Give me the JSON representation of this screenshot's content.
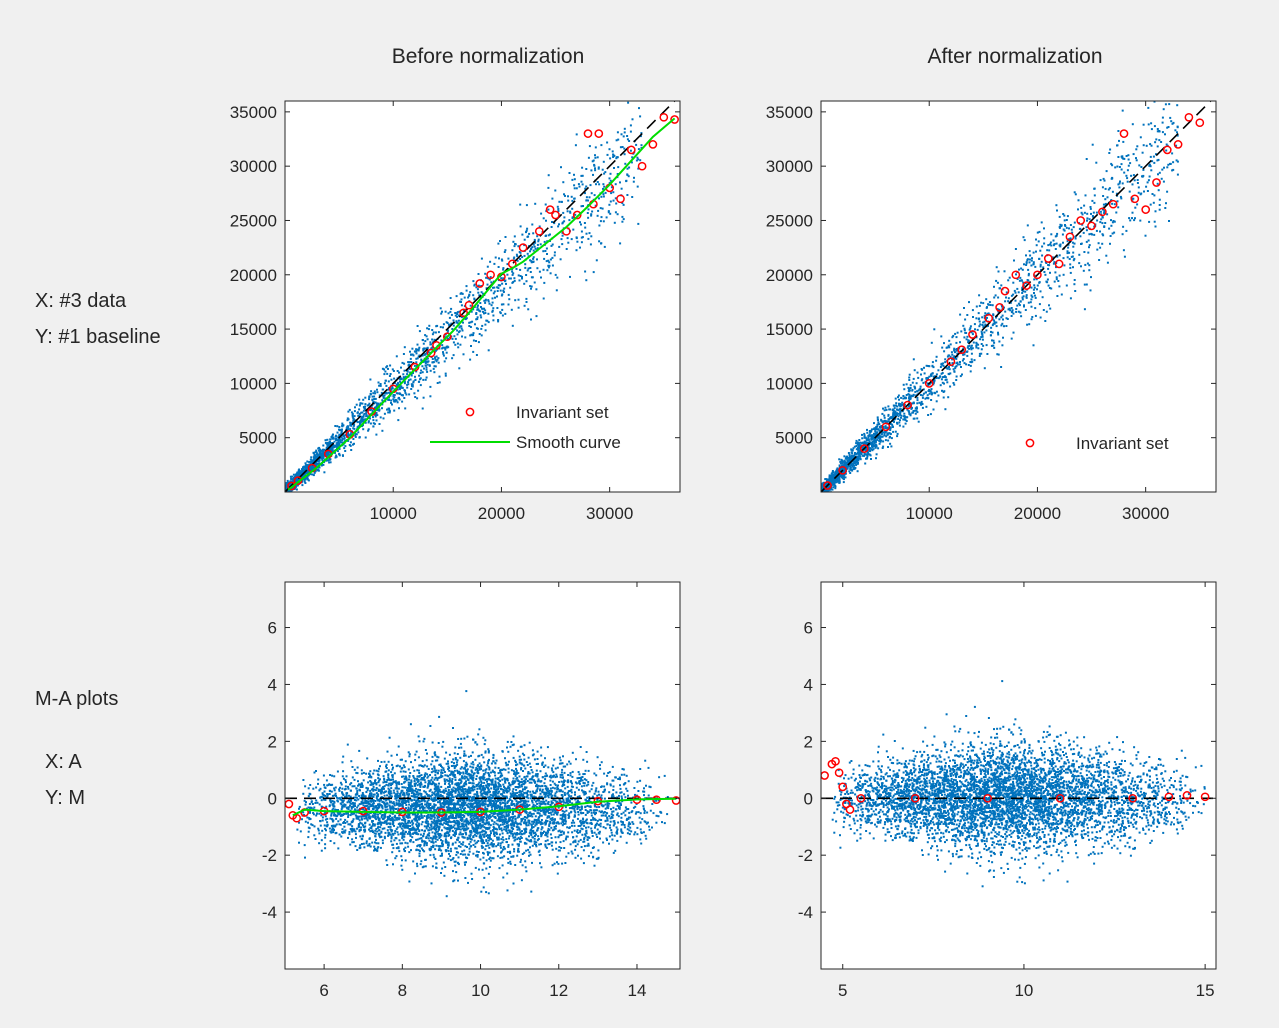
{
  "figure": {
    "side_labels": {
      "scatter_x": "X: #3 data",
      "scatter_y": "Y: #1 baseline",
      "ma_title": "M-A plots",
      "ma_x": "X: A",
      "ma_y": "Y: M"
    },
    "colors": {
      "background": "#f0f0f0",
      "axes_background": "#ffffff",
      "points": "#0072bd",
      "invariant": "#ff0000",
      "smooth": "#00dd00",
      "reference": "#000000"
    }
  },
  "chart_data": [
    {
      "id": "before-scatter",
      "type": "scatter",
      "title": "Before normalization",
      "xlabel": "",
      "ylabel": "",
      "xlim": [
        0,
        36500
      ],
      "ylim": [
        0,
        36000
      ],
      "xticks": [
        10000,
        20000,
        30000
      ],
      "yticks": [
        5000,
        10000,
        15000,
        20000,
        25000,
        30000,
        35000
      ],
      "grid": false,
      "legend": {
        "placement": "bottom-right",
        "entries": [
          "Invariant set",
          "Smooth curve"
        ]
      },
      "reference_line": {
        "style": "dashed",
        "points": [
          [
            0,
            0
          ],
          [
            36500,
            36500
          ]
        ]
      },
      "series": [
        {
          "name": "Invariant set",
          "marker": "open-circle",
          "values": [
            [
              600,
              550
            ],
            [
              1200,
              1050
            ],
            [
              2500,
              2200
            ],
            [
              4000,
              3500
            ],
            [
              6000,
              5300
            ],
            [
              8000,
              7400
            ],
            [
              10000,
              9500
            ],
            [
              12000,
              11500
            ],
            [
              13500,
              12800
            ],
            [
              14000,
              13500
            ],
            [
              15000,
              14300
            ],
            [
              16500,
              16500
            ],
            [
              17000,
              17200
            ],
            [
              18000,
              19200
            ],
            [
              19000,
              20000
            ],
            [
              20000,
              19800
            ],
            [
              21000,
              21000
            ],
            [
              22000,
              22500
            ],
            [
              23500,
              24000
            ],
            [
              24500,
              26000
            ],
            [
              25000,
              25500
            ],
            [
              26000,
              24000
            ],
            [
              27000,
              25500
            ],
            [
              28000,
              33000
            ],
            [
              28500,
              26500
            ],
            [
              29000,
              33000
            ],
            [
              30000,
              28000
            ],
            [
              31000,
              27000
            ],
            [
              32000,
              31500
            ],
            [
              33000,
              30000
            ],
            [
              34000,
              32000
            ],
            [
              35000,
              34500
            ],
            [
              36000,
              34300
            ]
          ]
        },
        {
          "name": "Smooth curve",
          "type": "line",
          "values": [
            [
              300,
              200
            ],
            [
              3000,
              2300
            ],
            [
              6000,
              5000
            ],
            [
              9000,
              8200
            ],
            [
              12000,
              11300
            ],
            [
              14000,
              13300
            ],
            [
              15500,
              14800
            ],
            [
              17000,
              16500
            ],
            [
              18500,
              18300
            ],
            [
              20000,
              20100
            ],
            [
              21000,
              20600
            ],
            [
              22000,
              21200
            ],
            [
              24000,
              22800
            ],
            [
              26000,
              24400
            ],
            [
              28000,
              26300
            ],
            [
              30000,
              28300
            ],
            [
              32000,
              30500
            ],
            [
              34000,
              32700
            ],
            [
              36000,
              34400
            ]
          ]
        }
      ]
    },
    {
      "id": "after-scatter",
      "type": "scatter",
      "title": "After normalization",
      "xlabel": "",
      "ylabel": "",
      "xlim": [
        0,
        36500
      ],
      "ylim": [
        0,
        36000
      ],
      "xticks": [
        10000,
        20000,
        30000
      ],
      "yticks": [
        5000,
        10000,
        15000,
        20000,
        25000,
        30000,
        35000
      ],
      "grid": false,
      "legend": {
        "placement": "bottom-right",
        "entries": [
          "Invariant set"
        ]
      },
      "reference_line": {
        "style": "dashed",
        "points": [
          [
            0,
            0
          ],
          [
            36500,
            36500
          ]
        ]
      },
      "series": [
        {
          "name": "Invariant set",
          "marker": "open-circle",
          "values": [
            [
              600,
              600
            ],
            [
              2000,
              2000
            ],
            [
              4000,
              4000
            ],
            [
              6000,
              6000
            ],
            [
              8000,
              8000
            ],
            [
              10000,
              10000
            ],
            [
              12000,
              12000
            ],
            [
              13000,
              13100
            ],
            [
              14000,
              14500
            ],
            [
              15500,
              16000
            ],
            [
              16500,
              17000
            ],
            [
              17000,
              18500
            ],
            [
              18000,
              20000
            ],
            [
              19000,
              19000
            ],
            [
              20000,
              20000
            ],
            [
              21000,
              21500
            ],
            [
              22000,
              21000
            ],
            [
              23000,
              23500
            ],
            [
              24000,
              25000
            ],
            [
              25000,
              24500
            ],
            [
              26000,
              25800
            ],
            [
              27000,
              26500
            ],
            [
              28000,
              33000
            ],
            [
              29000,
              27000
            ],
            [
              30000,
              26000
            ],
            [
              31000,
              28500
            ],
            [
              32000,
              31500
            ],
            [
              33000,
              32000
            ],
            [
              34000,
              34500
            ],
            [
              35000,
              34000
            ]
          ]
        }
      ]
    },
    {
      "id": "before-ma",
      "type": "scatter",
      "title": "",
      "xlabel": "",
      "ylabel": "",
      "xlim": [
        5,
        15.1
      ],
      "ylim": [
        -6,
        7.6
      ],
      "xticks": [
        6,
        8,
        10,
        12,
        14
      ],
      "yticks": [
        -4,
        -2,
        0,
        2,
        4,
        6
      ],
      "grid": false,
      "reference_line": {
        "style": "dashed",
        "points": [
          [
            5,
            0
          ],
          [
            15.1,
            0
          ]
        ]
      },
      "series": [
        {
          "name": "Invariant set",
          "marker": "open-circle",
          "values": [
            [
              5.1,
              -0.2
            ],
            [
              5.2,
              -0.6
            ],
            [
              5.3,
              -0.7
            ],
            [
              5.5,
              -0.5
            ],
            [
              6,
              -0.45
            ],
            [
              7,
              -0.45
            ],
            [
              8,
              -0.48
            ],
            [
              9,
              -0.5
            ],
            [
              10,
              -0.48
            ],
            [
              11,
              -0.4
            ],
            [
              12,
              -0.3
            ],
            [
              13,
              -0.1
            ],
            [
              14,
              -0.05
            ],
            [
              14.5,
              -0.05
            ],
            [
              15,
              -0.08
            ]
          ]
        },
        {
          "name": "Smooth curve",
          "type": "line",
          "values": [
            [
              5.2,
              -0.6
            ],
            [
              5.5,
              -0.4
            ],
            [
              6,
              -0.45
            ],
            [
              7,
              -0.48
            ],
            [
              8,
              -0.5
            ],
            [
              9,
              -0.5
            ],
            [
              10,
              -0.48
            ],
            [
              11,
              -0.4
            ],
            [
              12,
              -0.28
            ],
            [
              13,
              -0.12
            ],
            [
              14,
              -0.04
            ],
            [
              15,
              -0.02
            ]
          ]
        }
      ]
    },
    {
      "id": "after-ma",
      "type": "scatter",
      "title": "",
      "xlabel": "",
      "ylabel": "",
      "xlim": [
        4.4,
        15.3
      ],
      "ylim": [
        -6,
        7.6
      ],
      "xticks": [
        5,
        10,
        15
      ],
      "yticks": [
        -4,
        -2,
        0,
        2,
        4,
        6
      ],
      "grid": false,
      "reference_line": {
        "style": "dashed",
        "points": [
          [
            4.4,
            0
          ],
          [
            15.3,
            0
          ]
        ]
      },
      "series": [
        {
          "name": "Invariant set",
          "marker": "open-circle",
          "values": [
            [
              4.5,
              0.8
            ],
            [
              4.7,
              1.2
            ],
            [
              4.8,
              1.3
            ],
            [
              4.9,
              0.9
            ],
            [
              5,
              0.4
            ],
            [
              5.1,
              -0.2
            ],
            [
              5.2,
              -0.4
            ],
            [
              5.5,
              0
            ],
            [
              7,
              0
            ],
            [
              9,
              0
            ],
            [
              11,
              0
            ],
            [
              13,
              0
            ],
            [
              14,
              0.05
            ],
            [
              14.5,
              0.1
            ],
            [
              15,
              0.05
            ]
          ]
        }
      ]
    }
  ]
}
